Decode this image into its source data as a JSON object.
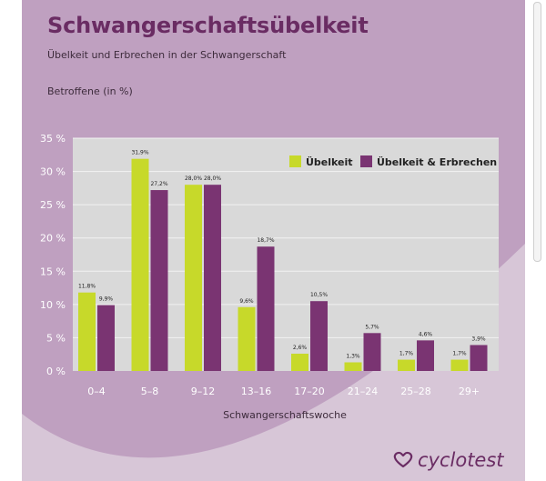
{
  "header": {
    "title": "Schwangerschaftsübelkeit",
    "subtitle": "Übelkeit und Erbrechen in der Schwangerschaft",
    "y_axis_title": "Betroffene (in %)"
  },
  "brand": {
    "name": "cyclotest",
    "icon": "cyclotest-heart-icon"
  },
  "colors": {
    "background": "#bfa0c0",
    "curve": "#d7c6d7",
    "plot_bg": "#d9d9d9",
    "grid": "#f2f2f2",
    "nausea": "#c7d92a",
    "vomiting": "#7a3472",
    "title": "#6a2c63"
  },
  "chart_data": {
    "type": "bar",
    "title": "Schwangerschaftsübelkeit",
    "subtitle": "Übelkeit und Erbrechen in der Schwangerschaft",
    "xlabel": "Schwangerschaftswoche",
    "ylabel": "Betroffene (in %)",
    "ylim": [
      0,
      35
    ],
    "yticks": [
      "0 %",
      "5 %",
      "10 %",
      "15 %",
      "20 %",
      "25 %",
      "30 %",
      "35 %"
    ],
    "categories": [
      "0–4",
      "5–8",
      "9–12",
      "13–16",
      "17–20",
      "21–24",
      "25–28",
      "29+"
    ],
    "series": [
      {
        "name": "Übelkeit",
        "color": "#c7d92a",
        "values": [
          11.8,
          31.9,
          28.0,
          9.6,
          2.6,
          1.3,
          1.7,
          1.7
        ],
        "labels": [
          "11,8%",
          "31,9%",
          "28,0%",
          "9,6%",
          "2,6%",
          "1,3%",
          "1,7%",
          "1,7%"
        ]
      },
      {
        "name": "Übelkeit & Erbrechen",
        "color": "#7a3472",
        "values": [
          9.9,
          27.2,
          28.0,
          18.7,
          10.5,
          5.7,
          4.6,
          3.9
        ],
        "labels": [
          "9,9%",
          "27,2%",
          "28,0%",
          "18,7%",
          "10,5%",
          "5,7%",
          "4,6%",
          "3,9%"
        ]
      }
    ],
    "legend_position": "top-right",
    "grid": true
  }
}
